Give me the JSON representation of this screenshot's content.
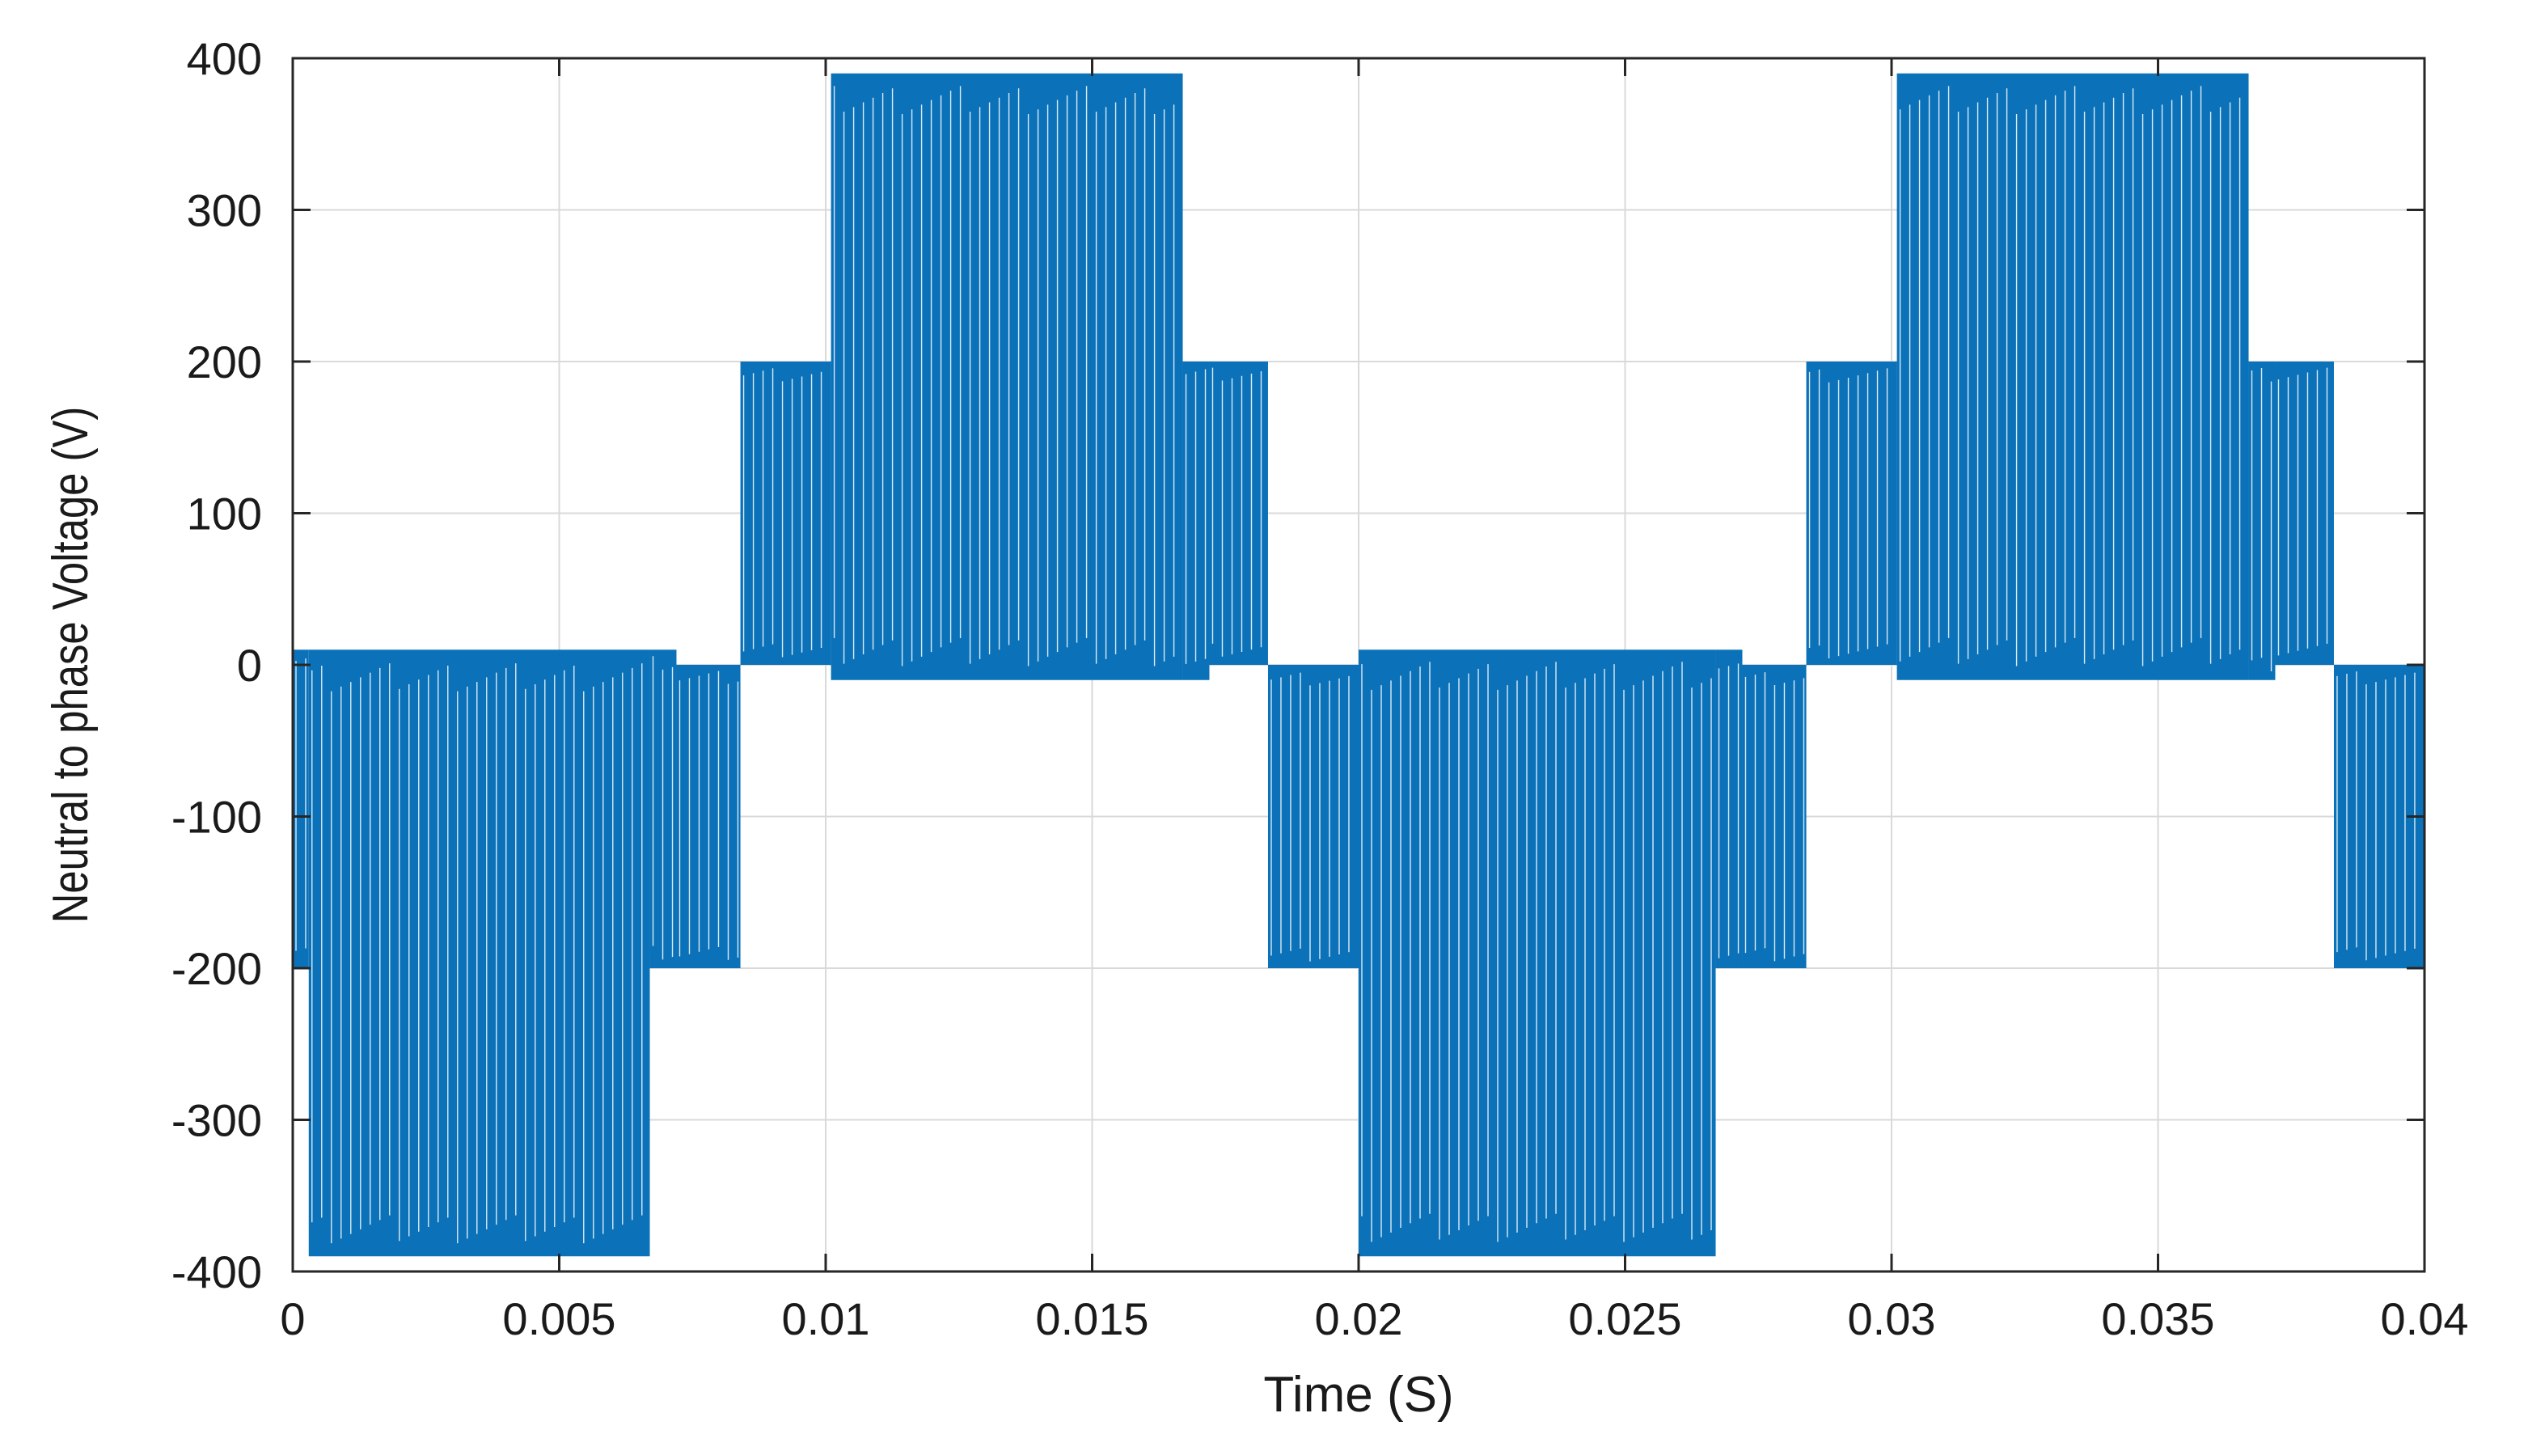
{
  "chart_data": {
    "type": "line",
    "title": "",
    "xlabel": "Time (S)",
    "ylabel": "Neutral to phase Voltage (V)",
    "xlim": [
      0,
      0.04
    ],
    "ylim": [
      -400,
      400
    ],
    "x_ticks": [
      0,
      0.005,
      0.01,
      0.015,
      0.02,
      0.025,
      0.03,
      0.035,
      0.04
    ],
    "x_tick_labels": [
      "0",
      "0.005",
      "0.01",
      "0.015",
      "0.02",
      "0.025",
      "0.03",
      "0.035",
      "0.04"
    ],
    "y_ticks": [
      400,
      300,
      200,
      100,
      0,
      -100,
      -200,
      -300,
      -400
    ],
    "y_tick_labels": [
      "400",
      "300",
      "200",
      "100",
      "0",
      "-100",
      "-200",
      "-300",
      "-400"
    ],
    "grid": true,
    "legend": "none",
    "series": [
      {
        "color": "#0b72b9",
        "description_switching": "PWM switching between envelope levels",
        "envelopes": [
          {
            "t_start": 0.0,
            "t_end": 0.0003,
            "low": -200,
            "high": 10
          },
          {
            "t_start": 0.0003,
            "t_end": 0.0067,
            "low": -390,
            "high": 10
          },
          {
            "t_start": 0.0067,
            "t_end": 0.0072,
            "low": -200,
            "high": 10
          },
          {
            "t_start": 0.0072,
            "t_end": 0.0084,
            "low": -200,
            "high": 0
          },
          {
            "t_start": 0.0084,
            "t_end": 0.0101,
            "low": 0,
            "high": 200
          },
          {
            "t_start": 0.0101,
            "t_end": 0.0167,
            "low": -10,
            "high": 390
          },
          {
            "t_start": 0.0167,
            "t_end": 0.0172,
            "low": -10,
            "high": 200
          },
          {
            "t_start": 0.0172,
            "t_end": 0.0183,
            "low": 0,
            "high": 200
          },
          {
            "t_start": 0.0183,
            "t_end": 0.02,
            "low": -200,
            "high": 0
          },
          {
            "t_start": 0.02,
            "t_end": 0.0267,
            "low": -390,
            "high": 10
          },
          {
            "t_start": 0.0267,
            "t_end": 0.0272,
            "low": -200,
            "high": 10
          },
          {
            "t_start": 0.0272,
            "t_end": 0.0284,
            "low": -200,
            "high": 0
          },
          {
            "t_start": 0.0284,
            "t_end": 0.0301,
            "low": 0,
            "high": 200
          },
          {
            "t_start": 0.0301,
            "t_end": 0.0367,
            "low": -10,
            "high": 390
          },
          {
            "t_start": 0.0367,
            "t_end": 0.0372,
            "low": -10,
            "high": 200
          },
          {
            "t_start": 0.0372,
            "t_end": 0.0383,
            "low": 0,
            "high": 200
          },
          {
            "t_start": 0.0383,
            "t_end": 0.04,
            "low": -200,
            "high": 0
          }
        ]
      }
    ]
  }
}
